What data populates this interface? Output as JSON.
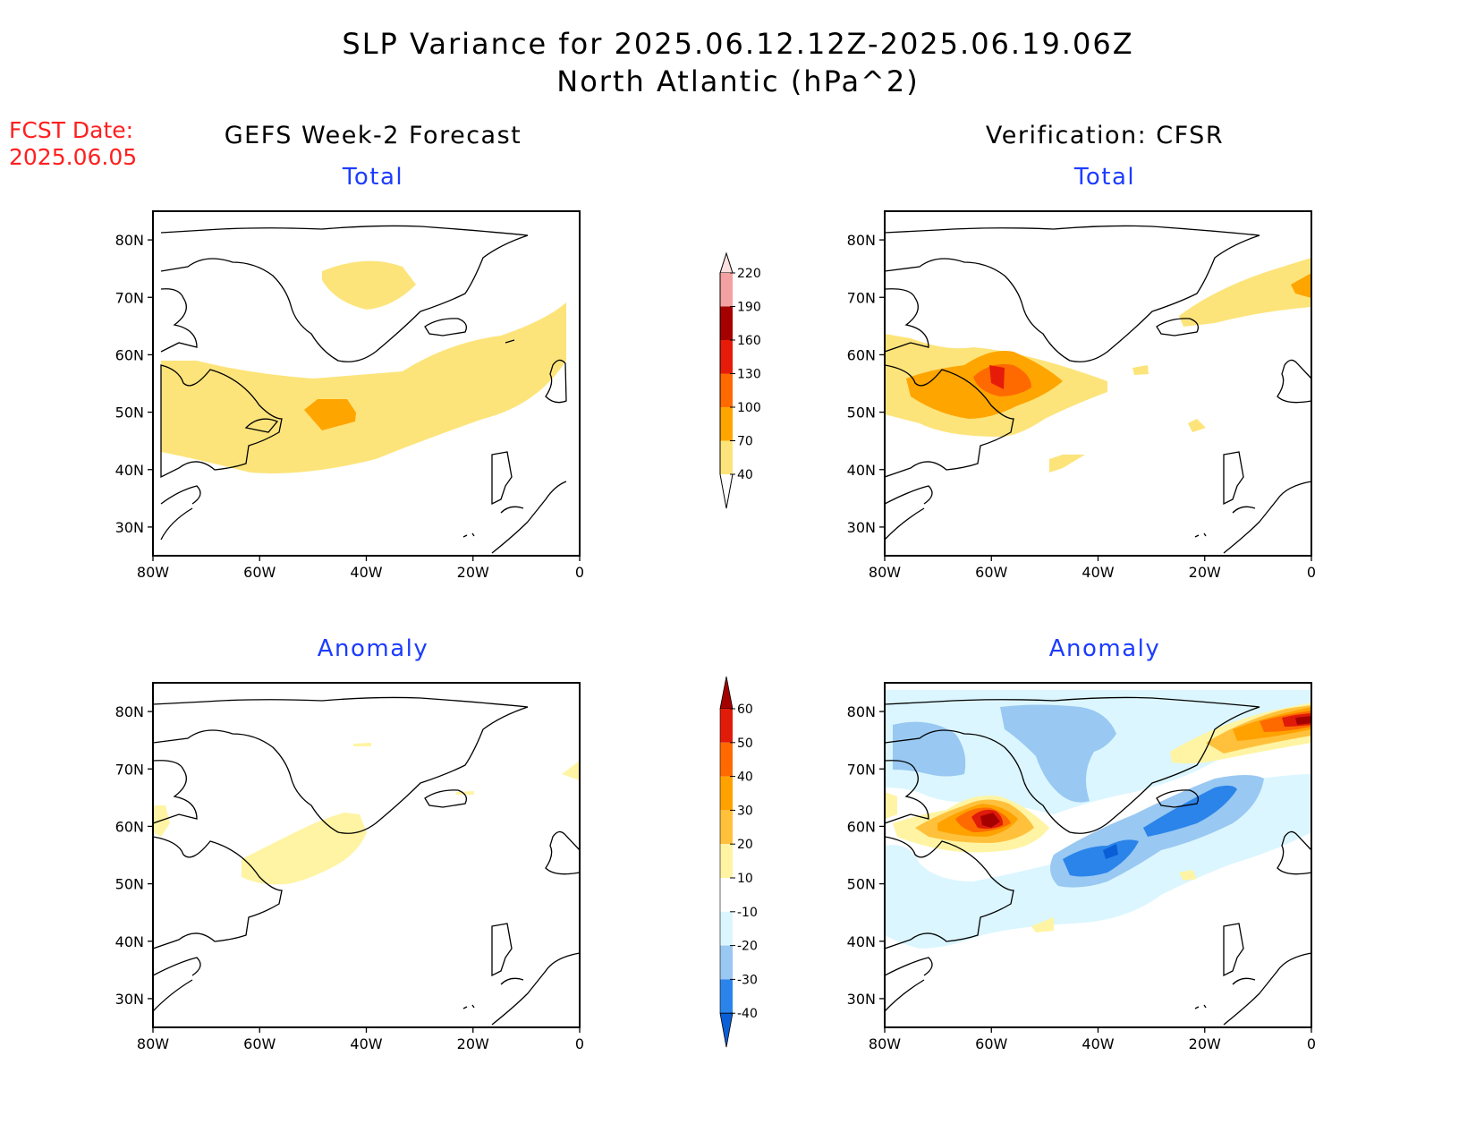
{
  "figure": {
    "title_line1": "SLP Variance for 2025.06.12.12Z-2025.06.19.06Z",
    "title_line2": "North Atlantic (hPa^2)",
    "fcst_label": "FCST Date:",
    "fcst_date": "2025.06.05"
  },
  "columns": {
    "left_title": "GEFS Week-2 Forecast",
    "right_title": "Verification: CFSR"
  },
  "panels": [
    {
      "id": "gefs-total",
      "subtitle": "Total"
    },
    {
      "id": "cfsr-total",
      "subtitle": "Total"
    },
    {
      "id": "gefs-anomaly",
      "subtitle": "Anomaly"
    },
    {
      "id": "cfsr-anomaly",
      "subtitle": "Anomaly"
    }
  ],
  "axes": {
    "lat_ticks": [
      "80N",
      "70N",
      "60N",
      "50N",
      "40N",
      "30N"
    ],
    "lon_ticks": [
      "80W",
      "60W",
      "40W",
      "20W",
      "0"
    ],
    "lat_range": [
      25,
      85
    ],
    "lon_range": [
      -80,
      0
    ]
  },
  "colorbars": {
    "total": {
      "labels": [
        "40",
        "70",
        "100",
        "130",
        "160",
        "190",
        "220"
      ],
      "colors": [
        "#fde47a",
        "#ffa500",
        "#ff6a00",
        "#e61b0a",
        "#a50000",
        "#f4a1a1",
        "#fde0e0"
      ]
    },
    "anomaly": {
      "labels": [
        "-40",
        "-30",
        "-20",
        "-10",
        "10",
        "20",
        "30",
        "40",
        "50",
        "60"
      ],
      "colors": [
        "#0a5fd6",
        "#2a84ea",
        "#99c8f2",
        "#dbf6ff",
        "#ffffff",
        "#fff4a3",
        "#ffc13c",
        "#ffa200",
        "#ff6a00",
        "#e01b0a",
        "#a50000"
      ]
    }
  }
}
